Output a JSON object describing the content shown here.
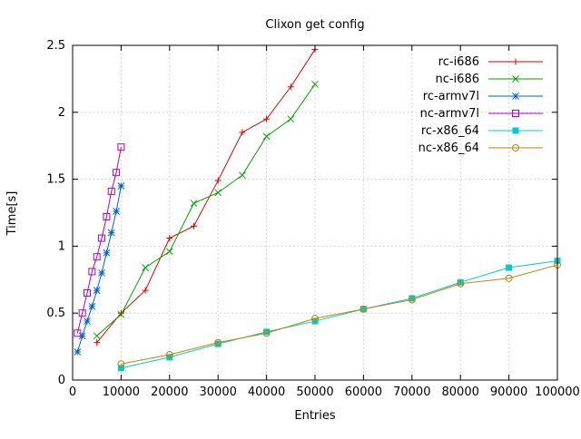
{
  "page": {
    "background_color": "#ffffff",
    "text_color": "#000000",
    "grid_color": "#c8c8c8",
    "border_color": "#000000"
  },
  "chart_data": {
    "type": "line",
    "title": "Clixon get config",
    "xlabel": "Entries",
    "ylabel": "Time[s]",
    "xlim": [
      0,
      100000
    ],
    "ylim": [
      0,
      2.5
    ],
    "xticks": [
      0,
      10000,
      20000,
      30000,
      40000,
      50000,
      60000,
      70000,
      80000,
      90000,
      100000
    ],
    "yticks": [
      0,
      0.5,
      1,
      1.5,
      2,
      2.5
    ],
    "grid": true,
    "legend_position": "top-right",
    "series": [
      {
        "name": "rc-i686",
        "color": "#dd0000",
        "marker": "plus",
        "x": [
          5000,
          10000,
          15000,
          20000,
          25000,
          30000,
          35000,
          40000,
          45000,
          50000
        ],
        "y": [
          0.28,
          0.5,
          0.67,
          1.06,
          1.15,
          1.49,
          1.85,
          1.95,
          2.19,
          2.47
        ]
      },
      {
        "name": "nc-i686",
        "color": "#00a000",
        "marker": "cross",
        "x": [
          5000,
          10000,
          15000,
          20000,
          25000,
          30000,
          35000,
          40000,
          45000,
          50000
        ],
        "y": [
          0.33,
          0.49,
          0.84,
          0.96,
          1.32,
          1.4,
          1.53,
          1.82,
          1.95,
          2.21
        ]
      },
      {
        "name": "rc-armv7l",
        "color": "#0060d0",
        "marker": "asterisk",
        "x": [
          1000,
          2000,
          3000,
          4000,
          5000,
          6000,
          7000,
          8000,
          9000,
          10000
        ],
        "y": [
          0.21,
          0.33,
          0.44,
          0.55,
          0.67,
          0.8,
          0.95,
          1.1,
          1.26,
          1.45
        ]
      },
      {
        "name": "nc-armv7l",
        "color": "#b000c0",
        "marker": "square-open",
        "x": [
          1000,
          2000,
          3000,
          4000,
          5000,
          6000,
          7000,
          8000,
          9000,
          10000
        ],
        "y": [
          0.35,
          0.5,
          0.65,
          0.81,
          0.92,
          1.06,
          1.22,
          1.41,
          1.55,
          1.74
        ]
      },
      {
        "name": "rc-x86_64",
        "color": "#00cccc",
        "marker": "square-filled",
        "x": [
          10000,
          20000,
          30000,
          40000,
          50000,
          60000,
          70000,
          80000,
          90000,
          100000
        ],
        "y": [
          0.09,
          0.17,
          0.27,
          0.36,
          0.44,
          0.53,
          0.61,
          0.73,
          0.84,
          0.89
        ]
      },
      {
        "name": "nc-x86_64",
        "color": "#b8860b",
        "marker": "circle-open",
        "x": [
          10000,
          20000,
          30000,
          40000,
          50000,
          60000,
          70000,
          80000,
          90000,
          100000
        ],
        "y": [
          0.12,
          0.19,
          0.28,
          0.35,
          0.46,
          0.53,
          0.6,
          0.72,
          0.76,
          0.86
        ]
      }
    ]
  }
}
